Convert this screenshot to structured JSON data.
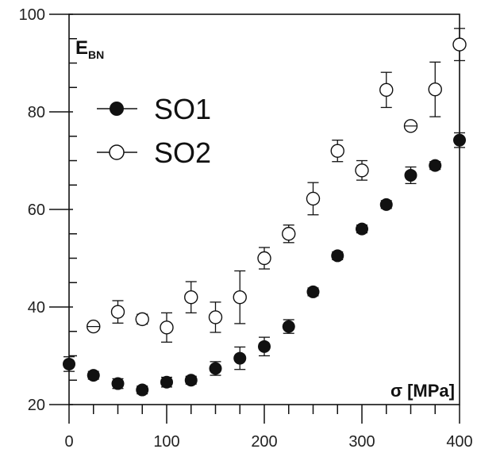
{
  "chart_data": {
    "type": "scatter",
    "ylabel_main": "E",
    "ylabel_sub": "BN",
    "xlabel": "σ [MPa]",
    "xlim": [
      0,
      400
    ],
    "ylim": [
      20,
      100
    ],
    "x_ticks": [
      0,
      100,
      200,
      300,
      400
    ],
    "y_ticks": [
      20,
      40,
      60,
      80,
      100
    ],
    "grid": false,
    "legend_position": "top-left",
    "series": [
      {
        "name": "SO1",
        "marker": "filled-circle",
        "points": [
          {
            "x": 0,
            "y": 28.3,
            "err": 1.5
          },
          {
            "x": 25,
            "y": 26.0,
            "err": 0.8
          },
          {
            "x": 50,
            "y": 24.3,
            "err": 1.0
          },
          {
            "x": 75,
            "y": 23.0,
            "err": 0.8
          },
          {
            "x": 100,
            "y": 24.6,
            "err": 1.0
          },
          {
            "x": 125,
            "y": 25.0,
            "err": 0.8
          },
          {
            "x": 150,
            "y": 27.4,
            "err": 1.4
          },
          {
            "x": 175,
            "y": 29.5,
            "err": 2.3
          },
          {
            "x": 200,
            "y": 31.9,
            "err": 1.9
          },
          {
            "x": 225,
            "y": 36.0,
            "err": 1.4
          },
          {
            "x": 250,
            "y": 43.1,
            "err": 0.8
          },
          {
            "x": 275,
            "y": 50.5,
            "err": 0.8
          },
          {
            "x": 300,
            "y": 56.0,
            "err": 0.8
          },
          {
            "x": 325,
            "y": 61.0,
            "err": 0.8
          },
          {
            "x": 350,
            "y": 67.0,
            "err": 1.7
          },
          {
            "x": 375,
            "y": 69.0,
            "err": 0.8
          },
          {
            "x": 400,
            "y": 74.2,
            "err": 1.5
          }
        ]
      },
      {
        "name": "SO2",
        "marker": "open-circle",
        "points": [
          {
            "x": 25,
            "y": 36.0,
            "err": 0
          },
          {
            "x": 50,
            "y": 39.0,
            "err": 2.3
          },
          {
            "x": 75,
            "y": 37.5,
            "err": 1.0
          },
          {
            "x": 100,
            "y": 35.8,
            "err": 3.0
          },
          {
            "x": 125,
            "y": 42.0,
            "err": 3.2
          },
          {
            "x": 150,
            "y": 37.9,
            "err": 3.1
          },
          {
            "x": 175,
            "y": 42.0,
            "err": 5.4
          },
          {
            "x": 200,
            "y": 50.0,
            "err": 2.2
          },
          {
            "x": 225,
            "y": 55.0,
            "err": 1.8
          },
          {
            "x": 250,
            "y": 62.2,
            "err": 3.3
          },
          {
            "x": 275,
            "y": 72.0,
            "err": 2.2
          },
          {
            "x": 300,
            "y": 68.0,
            "err": 2.0
          },
          {
            "x": 325,
            "y": 84.5,
            "err": 3.6
          },
          {
            "x": 350,
            "y": 77.1,
            "err": 0
          },
          {
            "x": 375,
            "y": 84.6,
            "err": 5.6
          },
          {
            "x": 400,
            "y": 93.8,
            "err": 3.3
          }
        ]
      }
    ]
  }
}
